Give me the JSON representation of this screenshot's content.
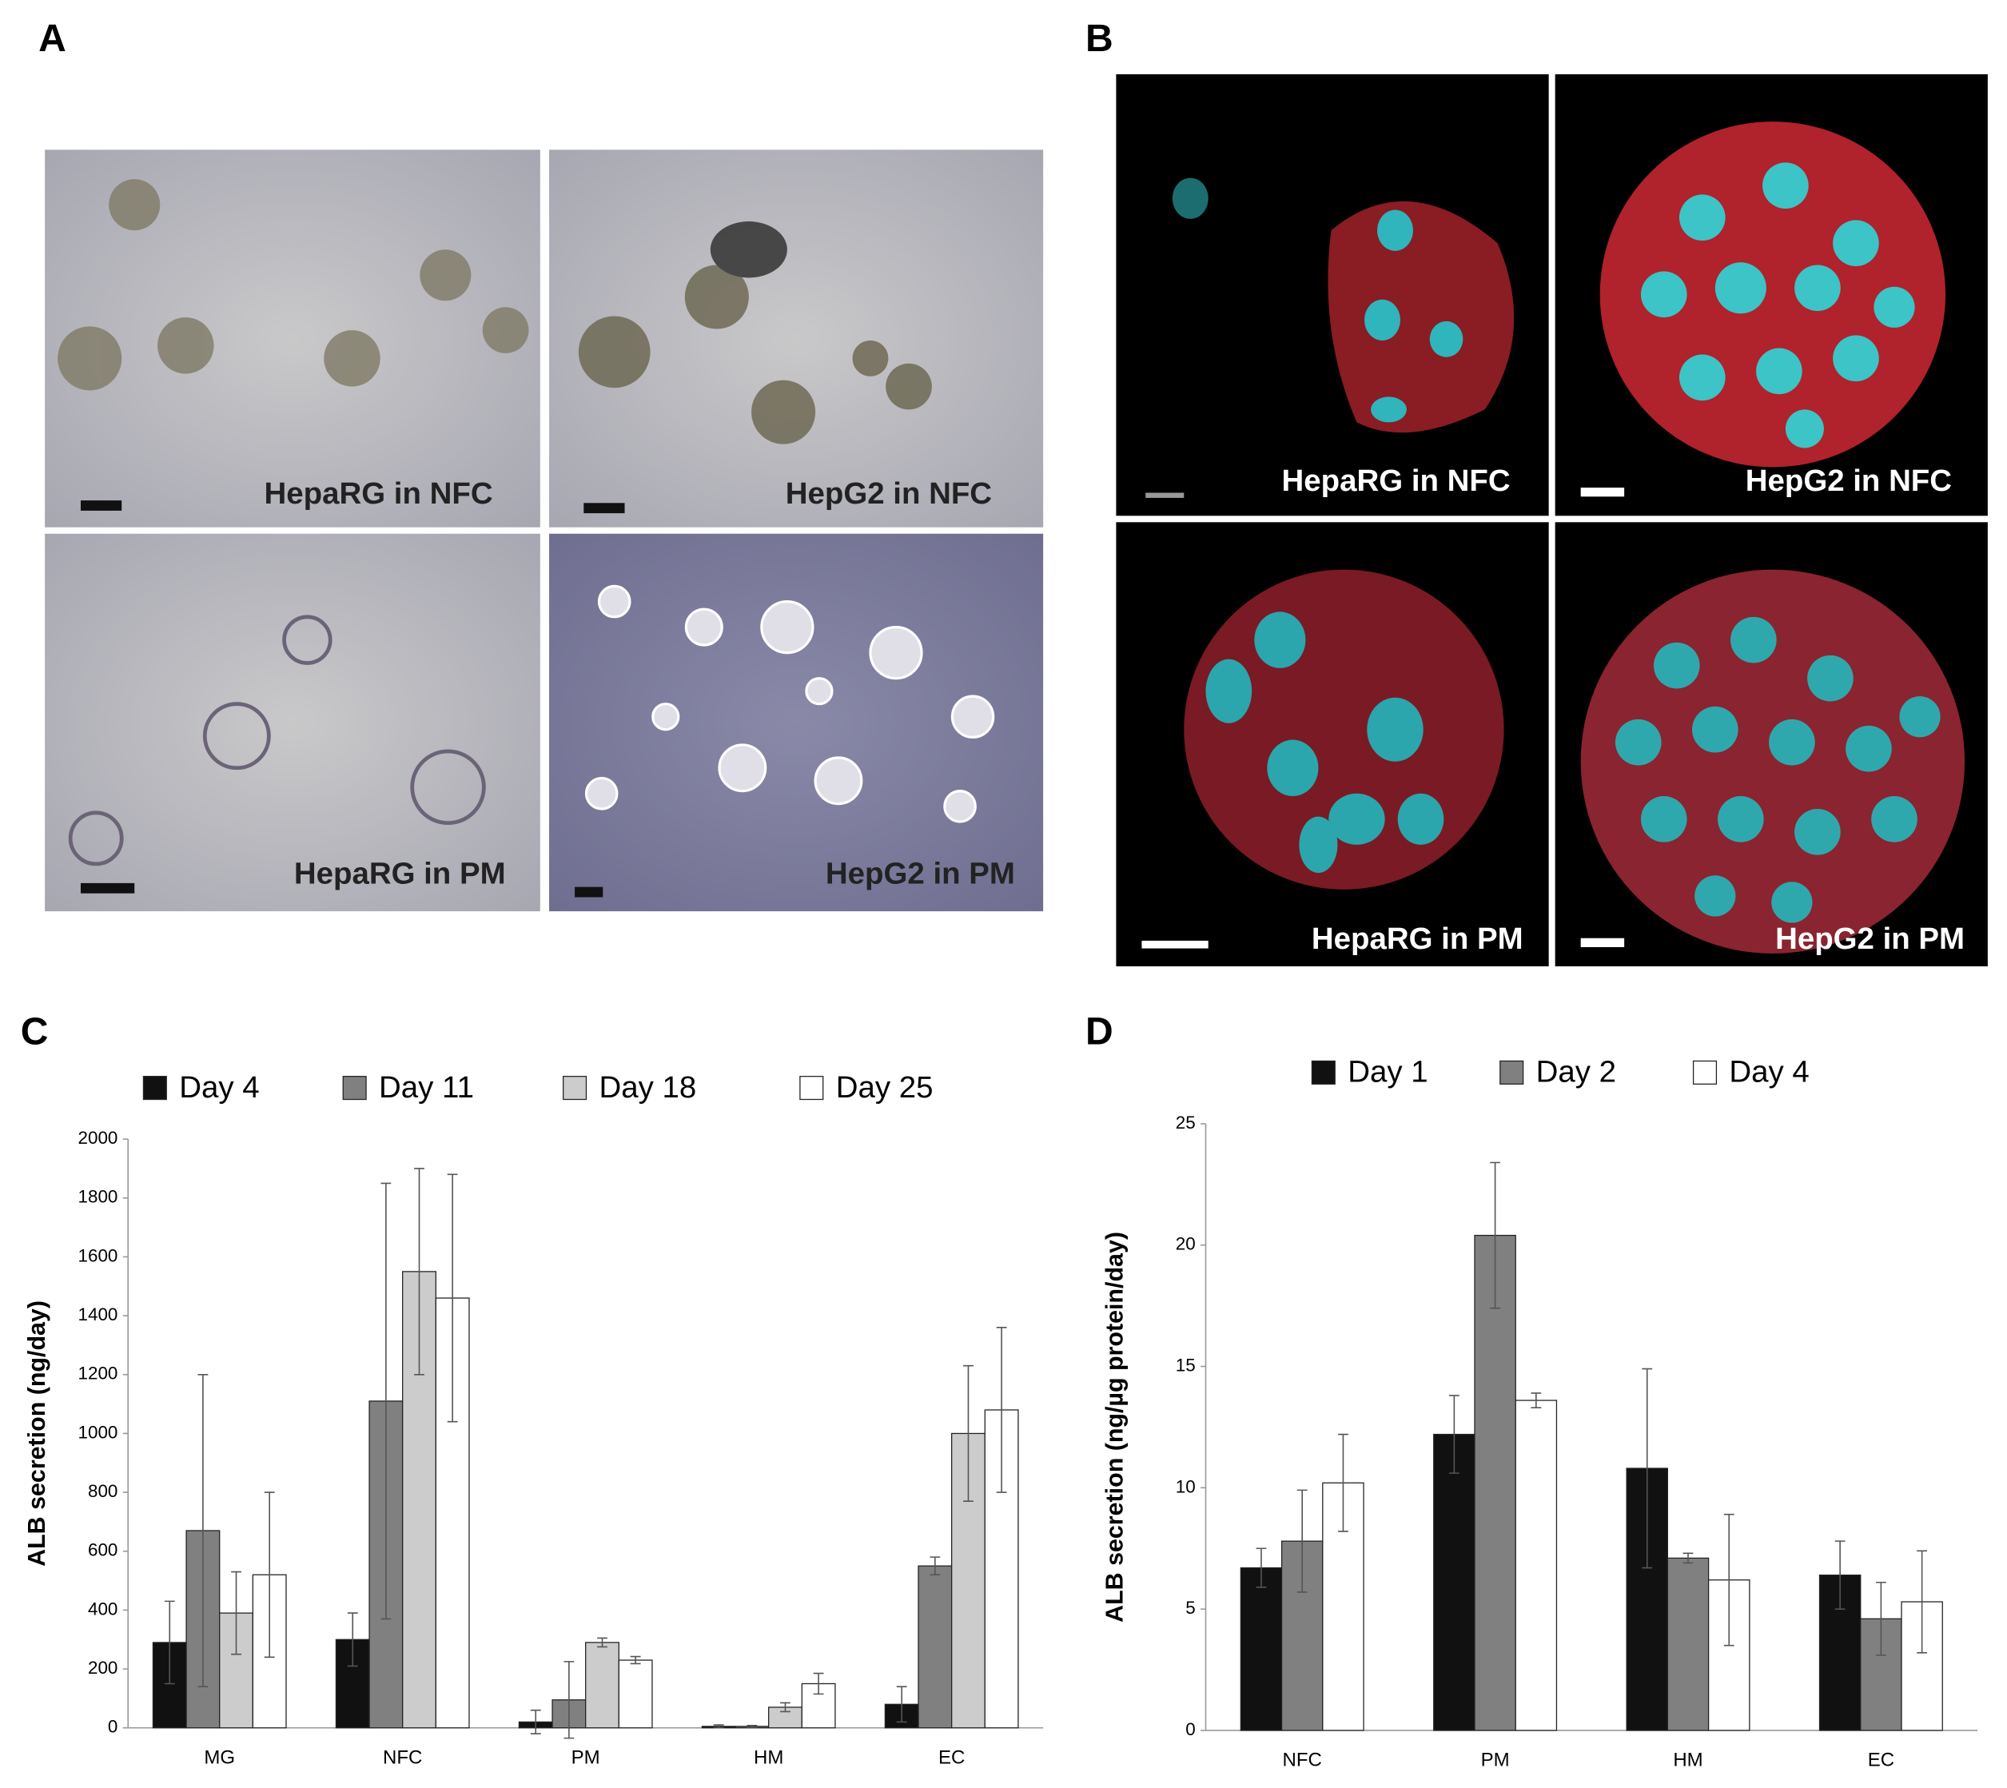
{
  "panel_a": {
    "label": "A",
    "images": [
      {
        "caption": "HepaRG in NFC"
      },
      {
        "caption": "HepG2 in NFC"
      },
      {
        "caption": "HepaRG in PM"
      },
      {
        "caption": "HepG2 in PM"
      }
    ]
  },
  "panel_b": {
    "label": "B",
    "images": [
      {
        "caption": "HepaRG in NFC"
      },
      {
        "caption": "HepG2 in NFC"
      },
      {
        "caption": "HepaRG in PM"
      },
      {
        "caption": "HepG2 in PM"
      }
    ]
  },
  "chart_data": [
    {
      "panel": "C",
      "type": "bar",
      "ylabel": "ALB secretion (ng/day)",
      "categories": [
        "MG",
        "NFC",
        "PM",
        "HM",
        "EC"
      ],
      "series": [
        {
          "name": "Day 4",
          "color": "#111111",
          "values": [
            290,
            300,
            20,
            5,
            80
          ],
          "errors": [
            140,
            90,
            40,
            5,
            60
          ]
        },
        {
          "name": "Day 11",
          "color": "#808080",
          "values": [
            670,
            1110,
            95,
            5,
            550
          ],
          "errors": [
            530,
            740,
            130,
            3,
            30
          ]
        },
        {
          "name": "Day 18",
          "color": "#cccccc",
          "values": [
            390,
            1550,
            290,
            70,
            1000
          ],
          "errors": [
            140,
            350,
            15,
            15,
            230
          ]
        },
        {
          "name": "Day 25",
          "color": "#ffffff",
          "values": [
            520,
            1460,
            230,
            150,
            1080
          ],
          "errors": [
            280,
            420,
            12,
            35,
            280
          ]
        }
      ],
      "ylim": [
        0,
        2000
      ],
      "yticks": [
        0,
        200,
        400,
        600,
        800,
        1000,
        1200,
        1400,
        1600,
        1800,
        2000
      ]
    },
    {
      "panel": "D",
      "type": "bar",
      "ylabel": "ALB secretion (ng/µg protein/day)",
      "categories": [
        "NFC",
        "PM",
        "HM",
        "EC"
      ],
      "series": [
        {
          "name": "Day 1",
          "color": "#111111",
          "values": [
            6.7,
            12.2,
            10.8,
            6.4
          ],
          "errors": [
            0.8,
            1.6,
            4.1,
            1.4
          ]
        },
        {
          "name": "Day 2",
          "color": "#808080",
          "values": [
            7.8,
            20.4,
            7.1,
            4.6
          ],
          "errors": [
            2.1,
            3.0,
            0.2,
            1.5
          ]
        },
        {
          "name": "Day 4",
          "color": "#ffffff",
          "values": [
            10.2,
            13.6,
            6.2,
            5.3
          ],
          "errors": [
            2.0,
            0.3,
            2.7,
            2.1
          ]
        }
      ],
      "ylim": [
        0,
        25
      ],
      "yticks": [
        0,
        5,
        10,
        15,
        20,
        25
      ]
    }
  ]
}
